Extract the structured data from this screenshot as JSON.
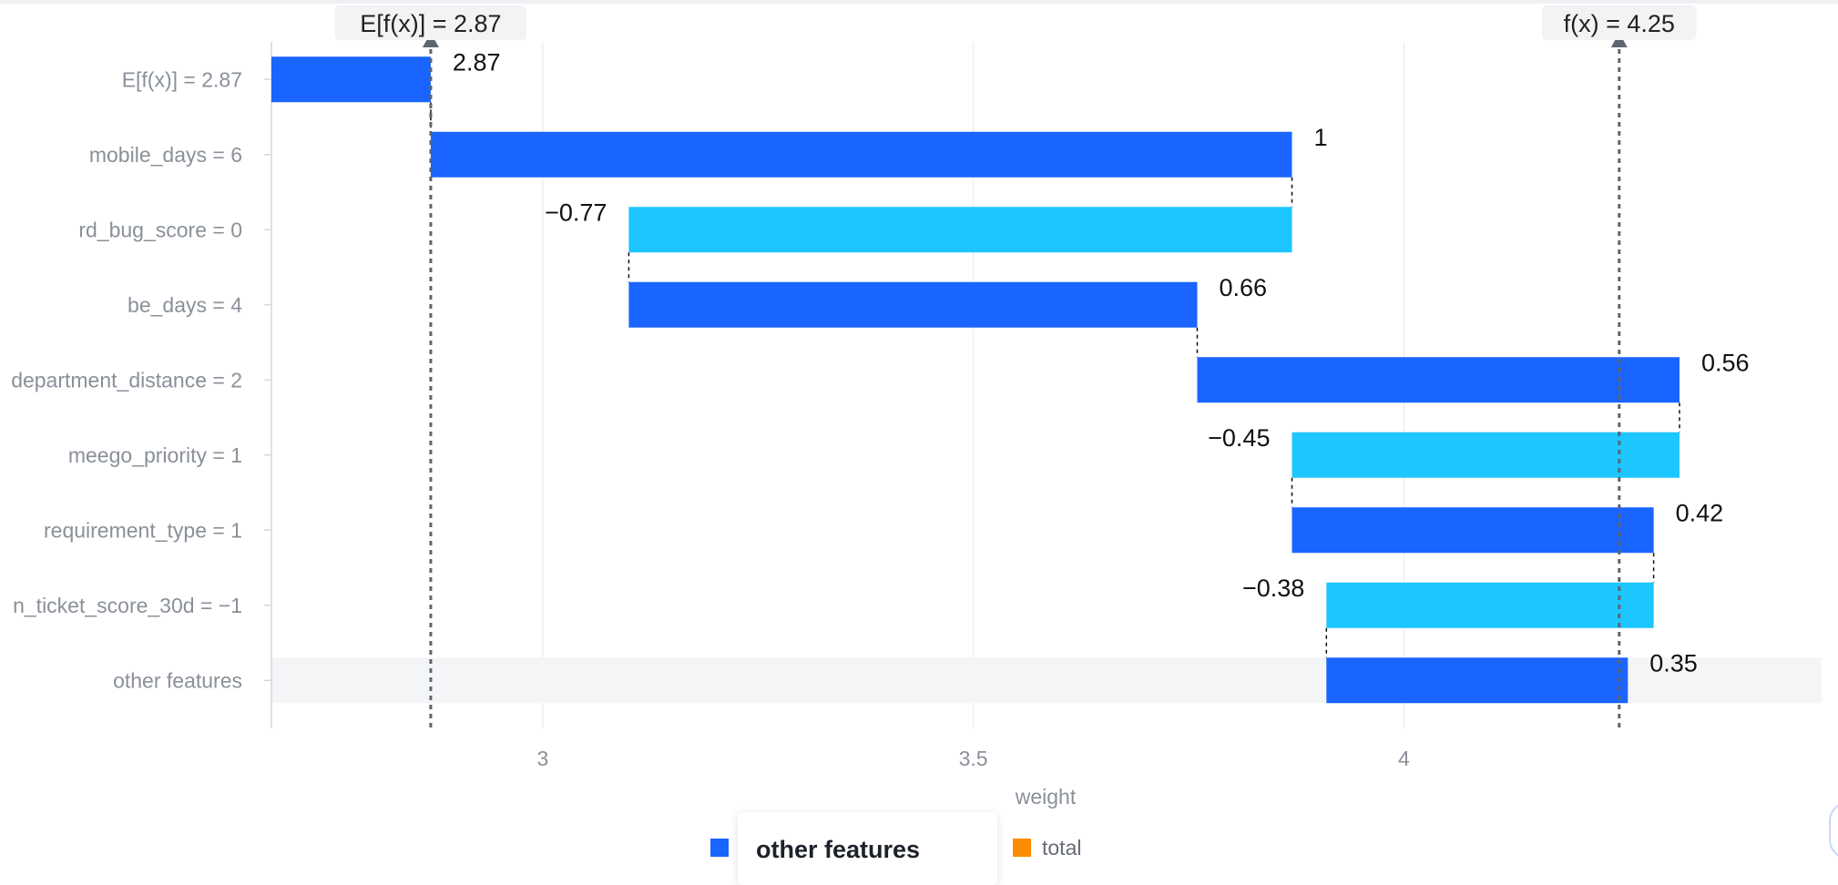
{
  "chart_data": {
    "type": "waterfall",
    "xlabel": "weight",
    "xlim": [
      2.685,
      4.485
    ],
    "xticks": [
      3,
      3.5,
      4
    ],
    "base_value": 2.87,
    "output_value": 4.25,
    "reference_lines": [
      {
        "label": "E[f(x)] = 2.87",
        "value": 2.87
      },
      {
        "label": "f(x) = 4.25",
        "value": 4.25
      }
    ],
    "bars": [
      {
        "label": "E[f(x)] = 2.87",
        "start": 2.685,
        "end": 2.87,
        "value_label": "2.87",
        "kind": "base"
      },
      {
        "label": "mobile_days = 6",
        "start": 2.87,
        "end": 3.87,
        "value_label": "1",
        "kind": "increase"
      },
      {
        "label": "rd_bug_score = 0",
        "start": 3.87,
        "end": 3.1,
        "value_label": "−0.77",
        "kind": "decrease"
      },
      {
        "label": "be_days = 4",
        "start": 3.1,
        "end": 3.76,
        "value_label": "0.66",
        "kind": "increase"
      },
      {
        "label": "department_distance = 2",
        "start": 3.76,
        "end": 4.32,
        "value_label": "0.56",
        "kind": "increase"
      },
      {
        "label": "meego_priority = 1",
        "start": 4.32,
        "end": 3.87,
        "value_label": "−0.45",
        "kind": "decrease"
      },
      {
        "label": "requirement_type = 1",
        "start": 3.87,
        "end": 4.29,
        "value_label": "0.42",
        "kind": "increase"
      },
      {
        "label": "n_ticket_score_30d = −1",
        "start": 4.29,
        "end": 3.91,
        "value_label": "−0.38",
        "kind": "decrease"
      },
      {
        "label": "other features",
        "start": 3.91,
        "end": 4.26,
        "value_label": "0.35",
        "kind": "increase",
        "highlighted": true
      }
    ],
    "legend": [
      {
        "name": "",
        "color": "#1a64ff"
      },
      {
        "name": "total",
        "color": "#ff8c00"
      }
    ],
    "colors": {
      "increase": "#1a64ff",
      "decrease": "#1dc6ff",
      "total": "#ff8c00"
    },
    "grid": true
  },
  "tooltip": {
    "title": "other features"
  }
}
